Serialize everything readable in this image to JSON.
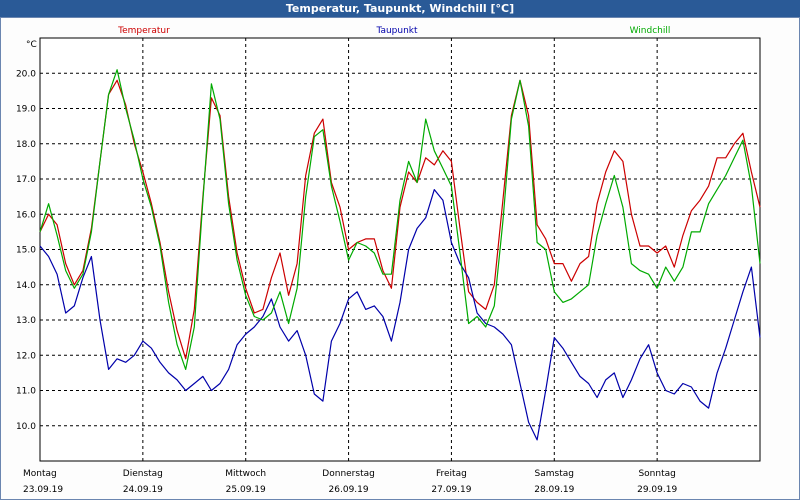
{
  "window": {
    "title": "Temperatur, Taupunkt, Windchill [°C]"
  },
  "chart_data": {
    "type": "line",
    "title": "Temperatur, Taupunkt, Windchill [°C]",
    "ylabel": "°C",
    "ylim": [
      9.0,
      21.0
    ],
    "y_ticks": [
      "10.0",
      "11.0",
      "12.0",
      "13.0",
      "14.0",
      "15.0",
      "16.0",
      "17.0",
      "18.0",
      "19.0",
      "20.0"
    ],
    "x_range_hours": [
      0,
      168
    ],
    "grid": true,
    "legend_placement": "top",
    "days": [
      {
        "day": "Montag",
        "date": "23.09.19"
      },
      {
        "day": "Dienstag",
        "date": "24.09.19"
      },
      {
        "day": "Mittwoch",
        "date": "25.09.19"
      },
      {
        "day": "Donnerstag",
        "date": "26.09.19"
      },
      {
        "day": "Freitag",
        "date": "27.09.19"
      },
      {
        "day": "Samstag",
        "date": "28.09.19"
      },
      {
        "day": "Sonntag",
        "date": "29.09.19"
      }
    ],
    "x_hours": [
      0,
      2,
      4,
      6,
      8,
      10,
      12,
      14,
      16,
      18,
      20,
      22,
      24,
      26,
      28,
      30,
      32,
      34,
      36,
      38,
      40,
      42,
      44,
      46,
      48,
      50,
      52,
      54,
      56,
      58,
      60,
      62,
      64,
      66,
      68,
      70,
      72,
      74,
      76,
      78,
      80,
      82,
      84,
      86,
      88,
      90,
      92,
      94,
      96,
      98,
      100,
      102,
      104,
      106,
      108,
      110,
      112,
      114,
      116,
      118,
      120,
      122,
      124,
      126,
      128,
      130,
      132,
      134,
      136,
      138,
      140,
      142,
      144,
      146,
      148,
      150,
      152,
      154,
      156,
      158,
      160,
      162,
      164,
      166,
      168
    ],
    "series": [
      {
        "name": "Temperatur",
        "color": "#cc0000",
        "values": [
          15.5,
          16.0,
          15.7,
          14.6,
          14.0,
          14.4,
          15.6,
          17.5,
          19.4,
          19.8,
          19.1,
          18.0,
          17.2,
          16.3,
          15.2,
          13.8,
          12.7,
          11.9,
          13.3,
          16.5,
          19.3,
          18.8,
          16.5,
          14.9,
          13.9,
          13.2,
          13.3,
          14.2,
          14.9,
          13.7,
          14.6,
          17.1,
          18.3,
          18.7,
          16.9,
          16.2,
          15.0,
          15.2,
          15.3,
          15.3,
          14.4,
          13.9,
          16.2,
          17.2,
          16.9,
          17.6,
          17.4,
          17.8,
          17.5,
          15.6,
          13.8,
          13.5,
          13.3,
          14.0,
          16.4,
          18.8,
          19.8,
          18.8,
          15.7,
          15.3,
          14.6,
          14.6,
          14.1,
          14.6,
          14.8,
          16.3,
          17.2,
          17.8,
          17.5,
          16.0,
          15.1,
          15.1,
          14.9,
          15.1,
          14.5,
          15.4,
          16.1,
          16.4,
          16.8,
          17.6,
          17.6,
          18.0,
          18.3,
          17.2,
          16.2
        ]
      },
      {
        "name": "Taupunkt",
        "color": "#0000aa",
        "values": [
          15.1,
          14.8,
          14.3,
          13.2,
          13.4,
          14.2,
          14.8,
          13.0,
          11.6,
          11.9,
          11.8,
          12.0,
          12.4,
          12.2,
          11.8,
          11.5,
          11.3,
          11.0,
          11.2,
          11.4,
          11.0,
          11.2,
          11.6,
          12.3,
          12.6,
          12.8,
          13.1,
          13.6,
          12.8,
          12.4,
          12.7,
          12.0,
          10.9,
          10.7,
          12.4,
          12.9,
          13.6,
          13.8,
          13.3,
          13.4,
          13.1,
          12.4,
          13.5,
          15.0,
          15.6,
          15.9,
          16.7,
          16.4,
          15.2,
          14.6,
          14.2,
          13.2,
          12.9,
          12.8,
          12.6,
          12.3,
          11.2,
          10.1,
          9.6,
          11.0,
          12.5,
          12.2,
          11.8,
          11.4,
          11.2,
          10.8,
          11.3,
          11.5,
          10.8,
          11.3,
          11.9,
          12.3,
          11.5,
          11.0,
          10.9,
          11.2,
          11.1,
          10.7,
          10.5,
          11.5,
          12.2,
          13.0,
          13.8,
          14.5,
          12.5
        ]
      },
      {
        "name": "Windchill",
        "color": "#00aa00",
        "values": [
          15.5,
          16.3,
          15.4,
          14.4,
          13.9,
          14.3,
          15.5,
          17.5,
          19.4,
          20.1,
          19.0,
          18.1,
          17.0,
          16.2,
          15.1,
          13.5,
          12.3,
          11.6,
          12.8,
          16.4,
          19.7,
          18.7,
          16.3,
          14.7,
          13.7,
          13.1,
          13.0,
          13.2,
          13.8,
          12.9,
          13.9,
          16.5,
          18.2,
          18.4,
          16.8,
          15.8,
          14.7,
          15.2,
          15.1,
          14.9,
          14.3,
          14.3,
          16.4,
          17.5,
          16.9,
          18.7,
          17.8,
          17.3,
          16.8,
          14.9,
          12.9,
          13.1,
          12.8,
          13.4,
          15.8,
          18.7,
          19.8,
          18.5,
          15.2,
          15.0,
          13.8,
          13.5,
          13.6,
          13.8,
          14.0,
          15.4,
          16.3,
          17.1,
          16.2,
          14.6,
          14.4,
          14.3,
          13.9,
          14.5,
          14.1,
          14.5,
          15.5,
          15.5,
          16.3,
          16.7,
          17.1,
          17.6,
          18.1,
          16.8,
          14.6
        ]
      }
    ]
  }
}
